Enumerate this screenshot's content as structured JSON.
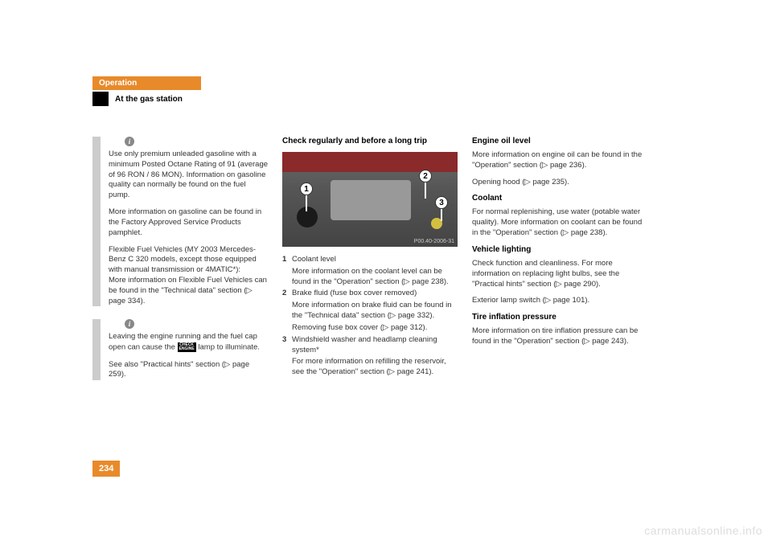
{
  "header": {
    "chapter": "Operation",
    "section": "At the gas station"
  },
  "info_box_1": {
    "p1": "Use only premium unleaded gasoline with a minimum Posted Octane Rating of 91 (average of 96 RON / 86 MON). Information on gasoline quality can normally be found on the fuel pump.",
    "p2": "More information on gasoline can be found in the Factory Approved Service Products pamphlet.",
    "p3": "Flexible Fuel Vehicles (MY 2003 Mercedes-Benz C 320 models, except those equipped with manual transmission or 4MATIC*):",
    "p4": "More information on Flexible Fuel Vehicles can be found in the \"Technical data\" section (▷ page 334)."
  },
  "info_box_2": {
    "p1_pre": "Leaving the engine running and the fuel cap open can cause the ",
    "p1_post": " lamp to illuminate.",
    "lamp_label": "CHECK\nENGINE",
    "p2": "See also \"Practical hints\" section (▷ page 259)."
  },
  "mid": {
    "heading": "Check regularly and before a long trip",
    "image_code": "P00.40-2006-31",
    "item1_title": "Coolant level",
    "item1_body": "More information on the coolant level can be found in the \"Operation\" section (▷ page 238).",
    "item2_title": "Brake fluid (fuse box cover removed)",
    "item2_body1": "More information on brake fluid can be found in the \"Technical data\" section (▷ page 332).",
    "item2_body2": "Removing fuse box cover (▷ page 312).",
    "item3_title": "Windshield washer and headlamp cleaning system*",
    "item3_body": "For more information on refilling the reservoir, see the \"Operation\" section (▷ page 241)."
  },
  "right": {
    "h1": "Engine oil level",
    "p1": "More information on engine oil can be found in the \"Operation\" section (▷ page 236).",
    "p2": "Opening hood (▷ page 235).",
    "h2": "Coolant",
    "p3": "For normal replenishing, use water (potable water quality). More information on coolant can be found in the \"Operation\" section (▷ page 238).",
    "h3": "Vehicle lighting",
    "p4": "Check function and cleanliness. For more information on replacing light bulbs, see the \"Practical hints\" section (▷ page 290).",
    "p5": "Exterior lamp switch (▷ page 101).",
    "h4": "Tire inflation pressure",
    "p6": "More information on tire inflation pressure can be found in the \"Operation\" section (▷ page 243)."
  },
  "page_number": "234",
  "watermark": "carmanualsonline.info",
  "callouts": {
    "c1": "1",
    "c2": "2",
    "c3": "3"
  }
}
